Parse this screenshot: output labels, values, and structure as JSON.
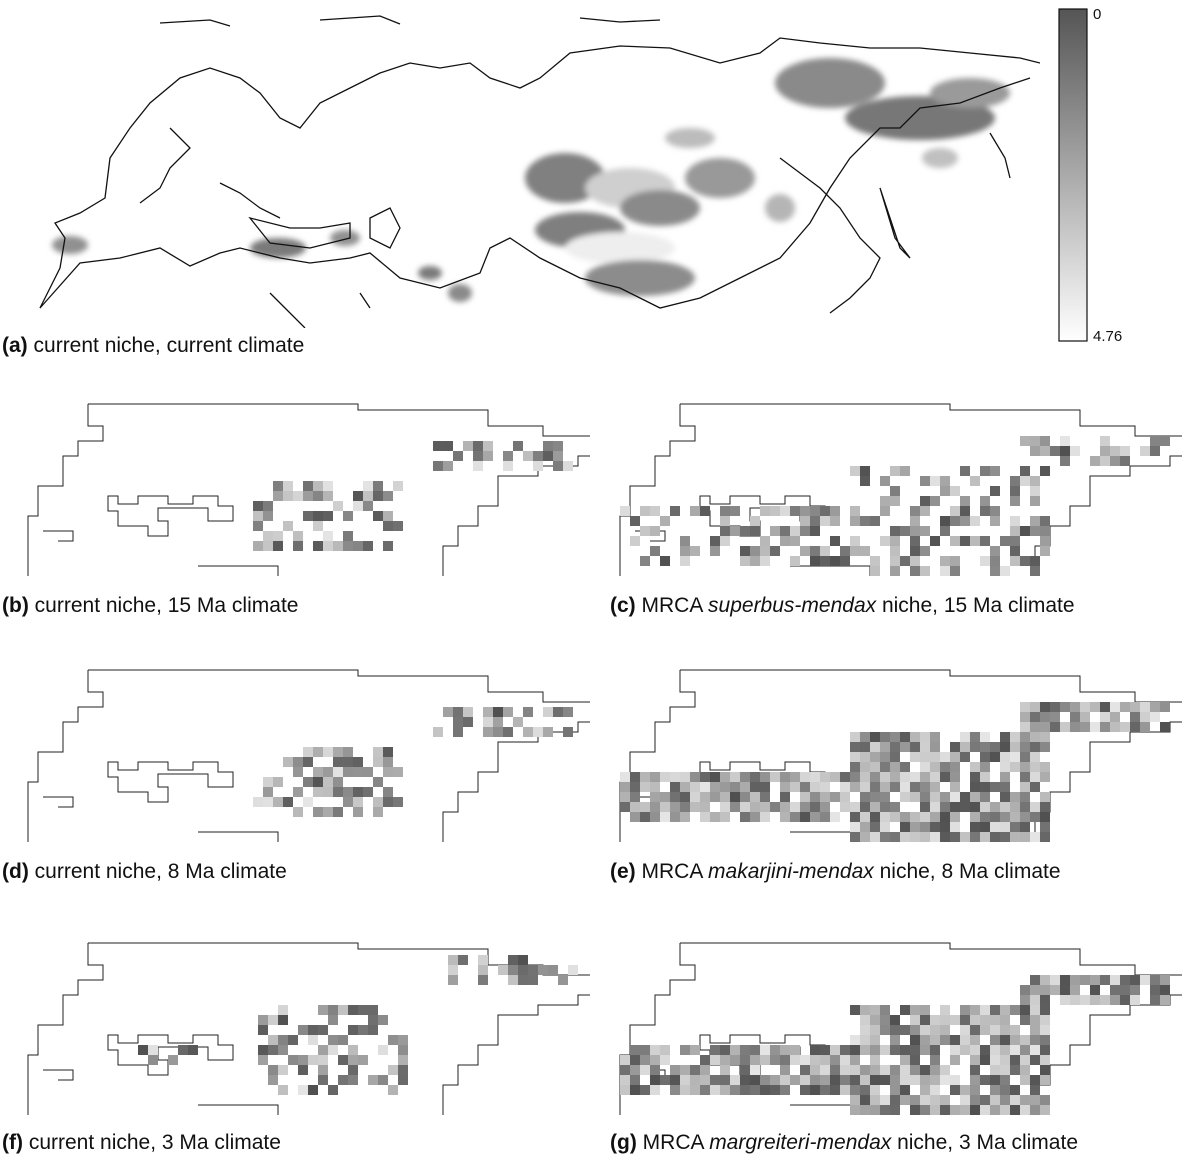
{
  "figure": {
    "colorbar": {
      "max_label": "0",
      "min_label": "4.76",
      "color_high": "#555555",
      "color_low": "#ffffff"
    },
    "panels": [
      {
        "id": "a",
        "letter": "(a)",
        "pre": "current niche, current climate",
        "italic": "",
        "post": ""
      },
      {
        "id": "b",
        "letter": "(b)",
        "pre": "current niche, 15 Ma climate",
        "italic": "",
        "post": ""
      },
      {
        "id": "c",
        "letter": "(c)",
        "pre": "MRCA ",
        "italic": "superbus-mendax",
        "post": " niche, 15 Ma climate"
      },
      {
        "id": "d",
        "letter": "(d)",
        "pre": "current niche, 8 Ma climate",
        "italic": "",
        "post": ""
      },
      {
        "id": "e",
        "letter": "(e)",
        "pre": "MRCA ",
        "italic": "makarjini-mendax",
        "post": " niche, 8 Ma climate"
      },
      {
        "id": "f",
        "letter": "(f)",
        "pre": "current niche, 3 Ma climate",
        "italic": "",
        "post": ""
      },
      {
        "id": "g",
        "letter": "(g)",
        "pre": "MRCA ",
        "italic": "margreiteri-mendax",
        "post": " niche, 3 Ma climate"
      }
    ]
  }
}
